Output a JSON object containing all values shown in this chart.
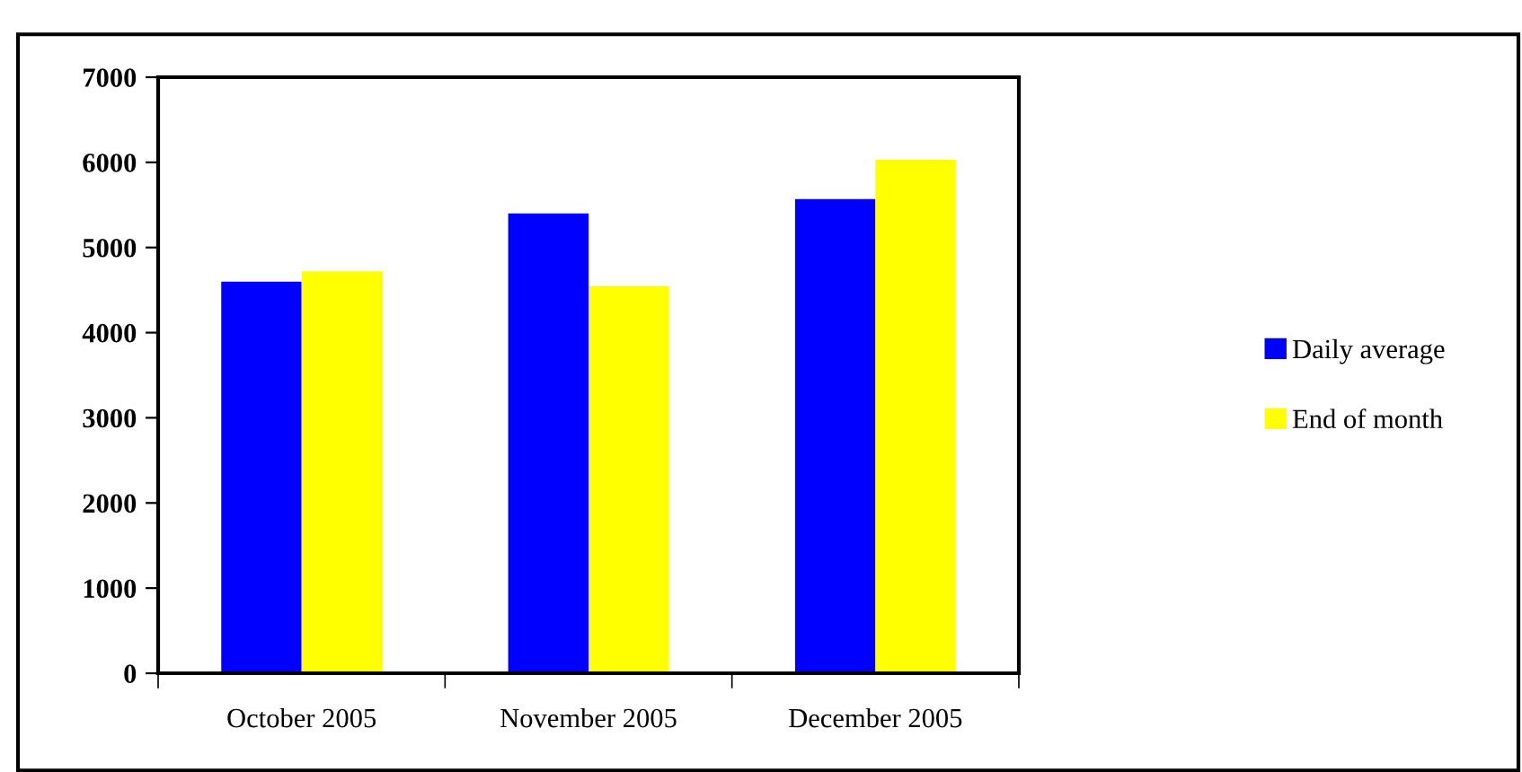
{
  "chart_data": {
    "type": "bar",
    "categories": [
      "October 2005",
      "November 2005",
      "December 2005"
    ],
    "series": [
      {
        "name": "Daily average",
        "color": "#0000ff",
        "values": [
          4600,
          5400,
          5570
        ]
      },
      {
        "name": "End of month",
        "color": "#ffff00",
        "values": [
          4720,
          4550,
          6030
        ]
      }
    ],
    "ylim": [
      0,
      7000
    ],
    "yticks": [
      0,
      1000,
      2000,
      3000,
      4000,
      5000,
      6000,
      7000
    ],
    "grid": false,
    "legend": "right"
  }
}
